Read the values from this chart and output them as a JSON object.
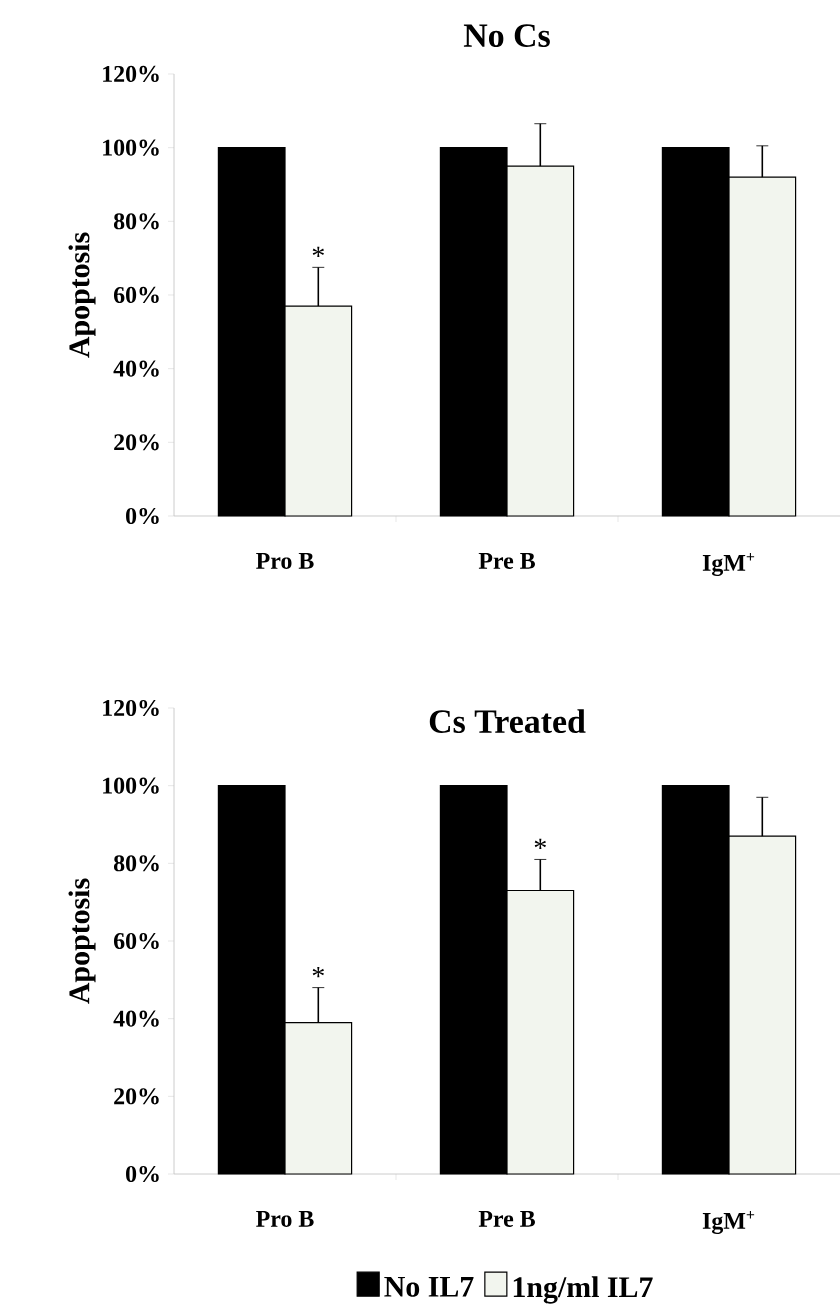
{
  "chart_data": [
    {
      "type": "bar",
      "title": "No Cs",
      "ylabel": "Apoptosis",
      "categories": [
        "Pro B",
        "Pre B",
        "IgM$^{+}$"
      ],
      "series": [
        {
          "color": "#000000",
          "values": [
            100,
            100,
            100
          ]
        },
        {
          "color": "#f2f5ee",
          "values": [
            57,
            95,
            92
          ],
          "errors": [
            [
              57,
              67.5
            ],
            [
              95,
              106.5
            ],
            [
              92,
              100.5
            ]
          ]
        }
      ],
      "ylim": [
        0,
        120
      ],
      "yticks": [
        {
          "value": 0,
          "label": "0%"
        },
        {
          "value": 20,
          "label": "20%"
        },
        {
          "value": 40,
          "label": "40%"
        },
        {
          "value": 60,
          "label": "60%"
        },
        {
          "value": 80,
          "label": "80%"
        },
        {
          "value": 100,
          "label": "100%"
        },
        {
          "value": 120,
          "label": "120%"
        }
      ],
      "annotations": [
        {
          "text": "*",
          "x": "Pro B",
          "y": 67.5
        }
      ]
    },
    {
      "type": "bar",
      "title": "Cs Treated",
      "ylabel": "Apoptosis",
      "categories": [
        "Pro B",
        "Pre B",
        "IgM$^{+}$"
      ],
      "series": [
        {
          "name": "No IL7",
          "color": "#000000",
          "values": [
            100,
            100,
            100
          ]
        },
        {
          "name": "1ng/ml IL7",
          "color": "#f2f5ee",
          "values": [
            39,
            73,
            87
          ],
          "errors": [
            [
              39,
              48
            ],
            [
              73,
              81
            ],
            [
              87,
              97
            ]
          ]
        }
      ],
      "ylim": [
        0,
        120
      ],
      "yticks": [
        {
          "value": 0,
          "label": "0%"
        },
        {
          "value": 20,
          "label": "20%"
        },
        {
          "value": 40,
          "label": "40%"
        },
        {
          "value": 60,
          "label": "60%"
        },
        {
          "value": 80,
          "label": "80%"
        },
        {
          "value": 100,
          "label": "100%"
        },
        {
          "value": 120,
          "label": "120%"
        }
      ],
      "annotations": [
        {
          "text": "*",
          "x": "Pro B",
          "y": 48
        },
        {
          "text": "*",
          "x": "Pre B",
          "y": 81
        }
      ],
      "legend": "bottom"
    }
  ]
}
